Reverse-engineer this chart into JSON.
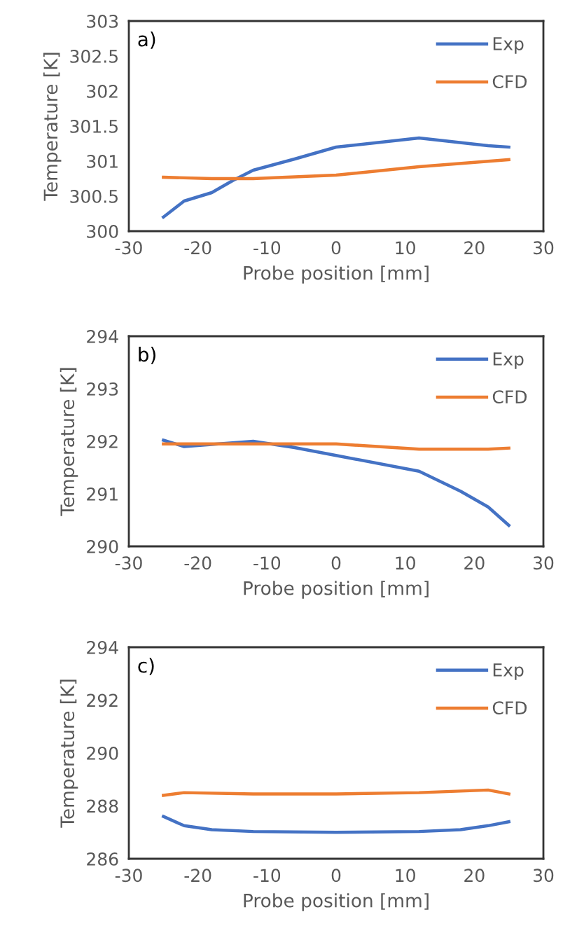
{
  "chart_data": [
    {
      "type": "line",
      "xlabel": "Probe position [mm]",
      "ylabel": "Temperature [K]",
      "annotations": [
        "a)"
      ],
      "xlim": [
        -30,
        30
      ],
      "xticks": [
        -30,
        -20,
        -10,
        0,
        10,
        20,
        30
      ],
      "ylim": [
        300,
        303
      ],
      "yticks": [
        300,
        {
          "value": 300.5,
          "label": "300.5"
        },
        301,
        {
          "value": 301.5,
          "label": "301.5"
        },
        302,
        {
          "value": 302.5,
          "label": "302.5"
        },
        303
      ],
      "legend": "top right",
      "grid": false,
      "series": [
        {
          "name": "Exp",
          "color": "#4472c4",
          "x": [
            -25,
            -22,
            -18,
            -15,
            -12,
            -6,
            0,
            12,
            22,
            25
          ],
          "values": [
            300.2,
            300.43,
            300.55,
            300.72,
            300.87,
            301.03,
            301.2,
            301.33,
            301.22,
            301.2
          ]
        },
        {
          "name": "CFD",
          "color": "#ed7d31",
          "x": [
            -25,
            -18,
            -12,
            0,
            12,
            25
          ],
          "values": [
            300.77,
            300.75,
            300.75,
            300.8,
            300.92,
            301.02
          ]
        }
      ]
    },
    {
      "type": "line",
      "xlabel": "Probe position [mm]",
      "ylabel": "Temperature [K]",
      "annotations": [
        "b)"
      ],
      "xlim": [
        -30,
        30
      ],
      "xticks": [
        -30,
        -20,
        -10,
        0,
        10,
        20,
        30
      ],
      "ylim": [
        290,
        294
      ],
      "yticks": [
        290,
        291,
        292,
        293,
        294
      ],
      "legend": "top right",
      "grid": false,
      "series": [
        {
          "name": "Exp",
          "color": "#4472c4",
          "x": [
            -25,
            -22,
            -12,
            -6,
            0,
            12,
            18,
            22,
            25
          ],
          "values": [
            292.02,
            291.9,
            292.0,
            291.88,
            291.73,
            291.43,
            291.05,
            290.75,
            290.4
          ]
        },
        {
          "name": "CFD",
          "color": "#ed7d31",
          "x": [
            -25,
            -12,
            0,
            12,
            22,
            25
          ],
          "values": [
            291.95,
            291.95,
            291.95,
            291.85,
            291.85,
            291.87
          ]
        }
      ]
    },
    {
      "type": "line",
      "xlabel": "Probe position [mm]",
      "ylabel": "Temperature [K]",
      "annotations": [
        "c)"
      ],
      "xlim": [
        -30,
        30
      ],
      "xticks": [
        -30,
        -20,
        -10,
        0,
        10,
        20,
        30
      ],
      "ylim": [
        286,
        294
      ],
      "yticks": [
        286,
        288,
        290,
        292,
        294
      ],
      "legend": "top right",
      "grid": false,
      "series": [
        {
          "name": "Exp",
          "color": "#4472c4",
          "x": [
            -25,
            -22,
            -18,
            -12,
            0,
            12,
            18,
            22,
            25
          ],
          "values": [
            287.6,
            287.25,
            287.1,
            287.03,
            287.0,
            287.03,
            287.1,
            287.25,
            287.4
          ]
        },
        {
          "name": "CFD",
          "color": "#ed7d31",
          "x": [
            -25,
            -22,
            -12,
            0,
            12,
            22,
            25
          ],
          "values": [
            288.4,
            288.5,
            288.45,
            288.45,
            288.5,
            288.6,
            288.45
          ]
        }
      ]
    }
  ]
}
